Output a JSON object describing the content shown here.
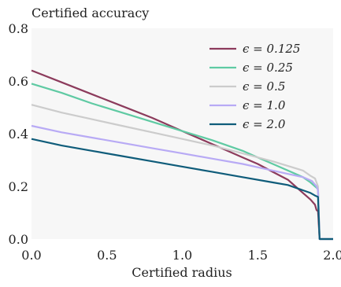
{
  "chart_data": {
    "type": "line",
    "ylabel": "Certified accuracy",
    "xlabel": "Certified radius",
    "xlim": [
      0.0,
      2.0
    ],
    "ylim": [
      0.0,
      0.8
    ],
    "xticks": [
      "0.0",
      "0.5",
      "1.0",
      "1.5",
      "2.0"
    ],
    "yticks": [
      "0.0",
      "0.2",
      "0.4",
      "0.6",
      "0.8"
    ],
    "xtick_values": [
      0.0,
      0.5,
      1.0,
      1.5,
      2.0
    ],
    "ytick_values": [
      0.0,
      0.2,
      0.4,
      0.6,
      0.8
    ],
    "grid": false,
    "background": "#f7f7f7",
    "legend_position": "top-right",
    "series": [
      {
        "name": "ϵ = 0.125",
        "color": "#8c3b5c",
        "x": [
          0.0,
          0.2,
          0.4,
          0.6,
          0.8,
          1.0,
          1.2,
          1.4,
          1.5,
          1.6,
          1.7,
          1.75,
          1.8,
          1.85,
          1.88,
          1.89,
          1.9,
          1.91,
          2.0
        ],
        "y": [
          0.64,
          0.595,
          0.55,
          0.505,
          0.46,
          0.41,
          0.36,
          0.31,
          0.285,
          0.255,
          0.225,
          0.2,
          0.175,
          0.15,
          0.13,
          0.11,
          0.105,
          0.0,
          0.0
        ]
      },
      {
        "name": "ϵ = 0.25",
        "color": "#5fcaa3",
        "x": [
          0.0,
          0.2,
          0.4,
          0.6,
          0.8,
          1.0,
          1.2,
          1.4,
          1.5,
          1.6,
          1.7,
          1.8,
          1.85,
          1.88,
          1.9,
          1.91,
          2.0
        ],
        "y": [
          0.59,
          0.555,
          0.515,
          0.48,
          0.445,
          0.41,
          0.375,
          0.335,
          0.31,
          0.285,
          0.26,
          0.235,
          0.215,
          0.2,
          0.19,
          0.0,
          0.0
        ]
      },
      {
        "name": "ϵ = 0.5",
        "color": "#cccccc",
        "x": [
          0.0,
          0.2,
          0.4,
          0.6,
          0.8,
          1.0,
          1.2,
          1.4,
          1.6,
          1.8,
          1.85,
          1.88,
          1.9,
          1.91,
          2.0
        ],
        "y": [
          0.51,
          0.48,
          0.455,
          0.43,
          0.405,
          0.38,
          0.355,
          0.325,
          0.295,
          0.26,
          0.24,
          0.23,
          0.2,
          0.0,
          0.0
        ]
      },
      {
        "name": "ϵ = 1.0",
        "color": "#b8aaf5",
        "x": [
          0.0,
          0.2,
          0.4,
          0.6,
          0.8,
          1.0,
          1.2,
          1.4,
          1.6,
          1.8,
          1.86,
          1.89,
          1.9,
          1.91,
          2.0
        ],
        "y": [
          0.43,
          0.405,
          0.385,
          0.365,
          0.345,
          0.325,
          0.305,
          0.285,
          0.26,
          0.235,
          0.22,
          0.2,
          0.185,
          0.0,
          0.0
        ]
      },
      {
        "name": "ϵ = 2.0",
        "color": "#0f5c7a",
        "x": [
          0.0,
          0.2,
          0.4,
          0.6,
          0.8,
          1.0,
          1.2,
          1.4,
          1.6,
          1.7,
          1.8,
          1.85,
          1.88,
          1.9,
          1.91,
          2.0
        ],
        "y": [
          0.38,
          0.355,
          0.335,
          0.315,
          0.295,
          0.275,
          0.255,
          0.235,
          0.215,
          0.205,
          0.185,
          0.175,
          0.165,
          0.16,
          0.0,
          0.0
        ]
      }
    ]
  }
}
